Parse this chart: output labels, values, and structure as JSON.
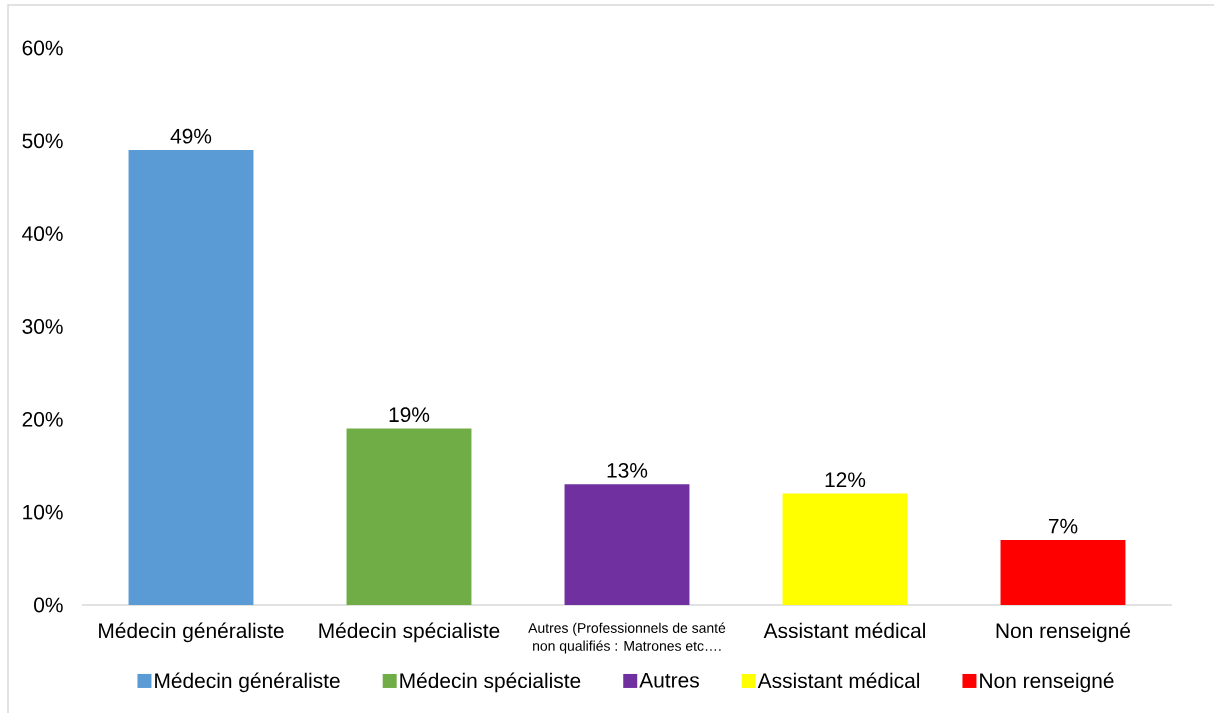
{
  "chart_data": {
    "type": "bar",
    "categories": [
      "Médecin généraliste",
      "Médecin spécialiste",
      "Autres (Professionnels de santé non qualifiés : Matrones etc….",
      "Assistant médical",
      "Non renseigné"
    ],
    "series": [
      {
        "name": "Médecin généraliste",
        "color": "#5b9bd5",
        "values": [
          49,
          null,
          null,
          null,
          null
        ],
        "value_labels": [
          "49%",
          null,
          null,
          null,
          null
        ]
      },
      {
        "name": "Médecin spécialiste",
        "color": "#70ad47",
        "values": [
          null,
          19,
          null,
          null,
          null
        ],
        "value_labels": [
          null,
          "19%",
          null,
          null,
          null
        ]
      },
      {
        "name": "Autres",
        "color": "#7030a0",
        "values": [
          null,
          null,
          13,
          null,
          null
        ],
        "value_labels": [
          null,
          null,
          "13%",
          null,
          null
        ]
      },
      {
        "name": "Assistant médical",
        "color": "#ffff00",
        "values": [
          null,
          null,
          null,
          12,
          null
        ],
        "value_labels": [
          null,
          null,
          null,
          "12%",
          null
        ]
      },
      {
        "name": "Non renseigné",
        "color": "#ff0000",
        "values": [
          null,
          null,
          null,
          null,
          7
        ],
        "value_labels": [
          null,
          null,
          null,
          null,
          "7%"
        ]
      }
    ],
    "ylim": [
      0,
      60
    ],
    "yticks": [
      {
        "value": 0,
        "label": "0%"
      },
      {
        "value": 10,
        "label": "10%"
      },
      {
        "value": 20,
        "label": "20%"
      },
      {
        "value": 30,
        "label": "30%"
      },
      {
        "value": 40,
        "label": "40%"
      },
      {
        "value": 50,
        "label": "50%"
      },
      {
        "value": 60,
        "label": "60%"
      }
    ],
    "legend": "bottom"
  }
}
